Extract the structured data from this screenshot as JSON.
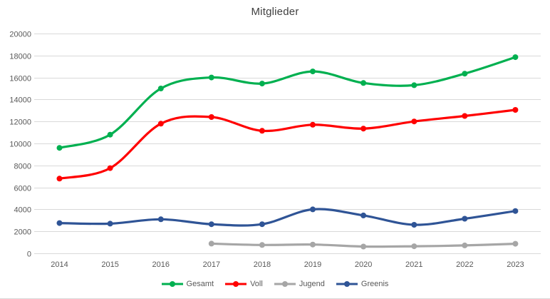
{
  "chart_data": {
    "type": "line",
    "title": "Mitglieder",
    "categories": [
      "2014",
      "2015",
      "2016",
      "2017",
      "2018",
      "2019",
      "2020",
      "2021",
      "2022",
      "2023"
    ],
    "series": [
      {
        "name": "Gesamt",
        "color": "#00B050",
        "values": [
          9600,
          10800,
          15000,
          16000,
          15450,
          16550,
          15500,
          15300,
          16350,
          17850
        ]
      },
      {
        "name": "Voll",
        "color": "#FF0000",
        "values": [
          6800,
          7750,
          11800,
          12400,
          11150,
          11700,
          11350,
          12000,
          12500,
          13050
        ]
      },
      {
        "name": "Jugend",
        "color": "#A6A6A6",
        "values": [
          null,
          null,
          null,
          880,
          760,
          800,
          620,
          640,
          720,
          870
        ]
      },
      {
        "name": "Greenis",
        "color": "#2F5496",
        "values": [
          2750,
          2700,
          3100,
          2650,
          2650,
          4000,
          3450,
          2600,
          3150,
          3850
        ]
      }
    ],
    "ylim": [
      0,
      20000
    ],
    "ytick_step": 2000,
    "grid": true,
    "legend_position": "bottom",
    "smooth": true,
    "marker": "circle"
  },
  "colors": {
    "grid": "#D9D9D9",
    "tick_text": "#595959",
    "title_text": "#404040",
    "background": "#FFFFFF"
  }
}
